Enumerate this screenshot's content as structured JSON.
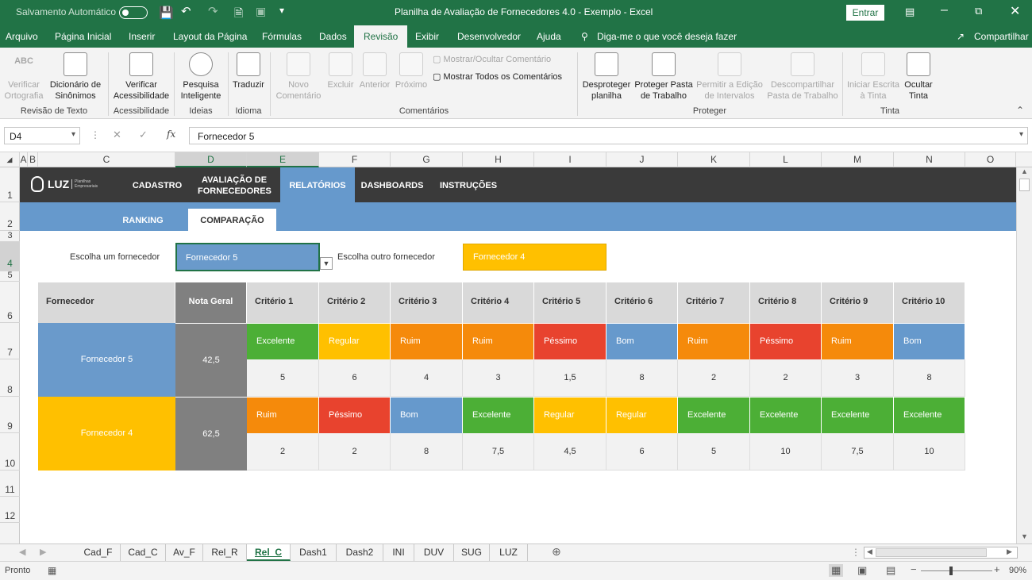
{
  "titlebar": {
    "autosave_label": "Salvamento Automático",
    "autosave_state": "Desativado",
    "doc_title": "Planilha de Avaliação de Fornecedores 4.0 - Exemplo  -  Excel",
    "signin_label": "Entrar"
  },
  "menubar": {
    "items": [
      "Arquivo",
      "Página Inicial",
      "Inserir",
      "Layout da Página",
      "Fórmulas",
      "Dados",
      "Revisão",
      "Exibir",
      "Desenvolvedor",
      "Ajuda"
    ],
    "active": "Revisão",
    "tell_me": "Diga-me o que você deseja fazer",
    "share": "Compartilhar"
  },
  "ribbon": {
    "groups": [
      {
        "label": "Revisão de Texto",
        "buttons": [
          "Verificar Ortografia",
          "Dicionário de Sinônimos"
        ]
      },
      {
        "label": "Acessibilidade",
        "buttons": [
          "Verificar Acessibilidade"
        ]
      },
      {
        "label": "Ideias",
        "buttons": [
          "Pesquisa Inteligente"
        ]
      },
      {
        "label": "Idioma",
        "buttons": [
          "Traduzir"
        ]
      },
      {
        "label": "Comentários",
        "buttons": [
          "Novo Comentário",
          "Excluir",
          "Anterior",
          "Próximo"
        ],
        "small": [
          "Mostrar/Ocultar Comentário",
          "Mostrar Todos os Comentários"
        ]
      },
      {
        "label": "Proteger",
        "buttons": [
          "Desproteger planilha",
          "Proteger Pasta de Trabalho",
          "Permitir a Edição de Intervalos",
          "Descompartilhar Pasta de Trabalho"
        ]
      },
      {
        "label": "Tinta",
        "buttons": [
          "Iniciar Escrita à Tinta",
          "Ocultar Tinta"
        ]
      }
    ],
    "abc_label": "ABC"
  },
  "formulabar": {
    "namebox": "D4",
    "fx": "fx",
    "content": "Fornecedor 5"
  },
  "columns": [
    "A",
    "B",
    "C",
    "D",
    "E",
    "F",
    "G",
    "H",
    "I",
    "J",
    "K",
    "L",
    "M",
    "N",
    "O"
  ],
  "rows": [
    "1",
    "2",
    "3",
    "4",
    "5",
    "6",
    "7",
    "8",
    "9",
    "10",
    "11",
    "12"
  ],
  "sheet": {
    "logo_text": "LUZ",
    "logo_sub": "Planilhas Empresariais",
    "nav": [
      "CADASTRO",
      "AVALIAÇÃO DE FORNECEDORES",
      "RELATÓRIOS",
      "DASHBOARDS",
      "INSTRUÇÕES"
    ],
    "subnav": [
      "RANKING",
      "COMPARAÇÃO"
    ],
    "choose_label_1": "Escolha um fornecedor",
    "choose_value_1": "Fornecedor 5",
    "choose_label_2": "Escolha outro fornecedor",
    "choose_value_2": "Fornecedor 4",
    "table_headers": [
      "Fornecedor",
      "Nota Geral",
      "Critério 1",
      "Critério 2",
      "Critério 3",
      "Critério 4",
      "Critério 5",
      "Critério 6",
      "Critério 7",
      "Critério 8",
      "Critério 9",
      "Critério 10"
    ],
    "suppliers": [
      {
        "name": "Fornecedor 5",
        "score": "42,5",
        "ratings": [
          "Excelente",
          "Regular",
          "Ruim",
          "Ruim",
          "Péssimo",
          "Bom",
          "Ruim",
          "Péssimo",
          "Ruim",
          "Bom"
        ],
        "values": [
          "5",
          "6",
          "4",
          "3",
          "1,5",
          "8",
          "2",
          "2",
          "3",
          "8"
        ]
      },
      {
        "name": "Fornecedor 4",
        "score": "62,5",
        "ratings": [
          "Ruim",
          "Péssimo",
          "Bom",
          "Excelente",
          "Regular",
          "Regular",
          "Excelente",
          "Excelente",
          "Excelente",
          "Excelente"
        ],
        "values": [
          "2",
          "2",
          "8",
          "7,5",
          "4,5",
          "6",
          "5",
          "10",
          "7,5",
          "10"
        ]
      }
    ]
  },
  "rating_colors": {
    "Excelente": "#4caf36",
    "Bom": "#6699cc",
    "Regular": "#ffc000",
    "Ruim": "#f58a0b",
    "Péssimo": "#e8432e"
  },
  "colors": {
    "excel_green": "#217346",
    "supplier1": "#6a9acb",
    "supplier2": "#ffc000",
    "score_bg": "#808080",
    "nav_dark": "#3a3a3a",
    "nav_blue": "#6699cc"
  },
  "sheet_tabs": [
    "Cad_F",
    "Cad_C",
    "Av_F",
    "Rel_R",
    "Rel_C",
    "Dash1",
    "Dash2",
    "INI",
    "DUV",
    "SUG",
    "LUZ"
  ],
  "active_tab": "Rel_C",
  "status": {
    "mode": "Pronto",
    "zoom": "90%"
  }
}
